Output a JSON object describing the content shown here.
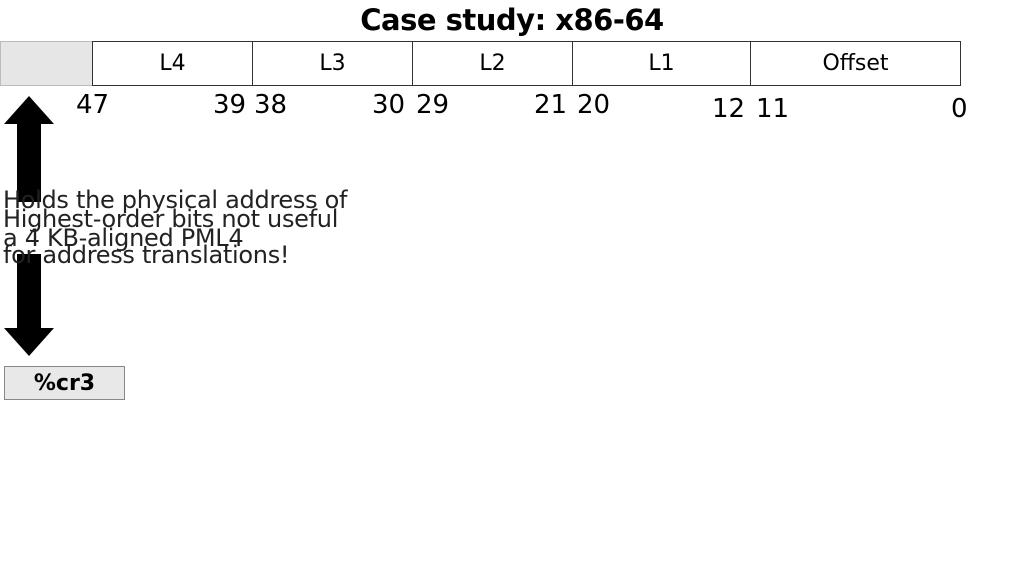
{
  "title": "Case study: x86-64",
  "address_fields": [
    {
      "label": "",
      "name": "unused-high-bits"
    },
    {
      "label": "L4",
      "name": "l4"
    },
    {
      "label": "L3",
      "name": "l3"
    },
    {
      "label": "L2",
      "name": "l2"
    },
    {
      "label": "L1",
      "name": "l1"
    },
    {
      "label": "Offset",
      "name": "offset"
    }
  ],
  "bit_positions": {
    "b47": "47",
    "b39": "39",
    "b38": "38",
    "b30": "30",
    "b29": "29",
    "b21": "21",
    "b20": "20",
    "b12": "12",
    "b11": "11",
    "b0": "0"
  },
  "notes": {
    "cr3_note_line1": "Holds the physical address of",
    "cr3_note_line2": "a 4 KB-aligned PML4",
    "unused_note_line1": "Highest-order bits not useful",
    "unused_note_line2": "for address translations!"
  },
  "register": {
    "label": "%cr3"
  },
  "colors": {
    "unused_fill": "#e6e6e6",
    "register_fill": "#e8e8e8",
    "arrow": "#000000"
  }
}
